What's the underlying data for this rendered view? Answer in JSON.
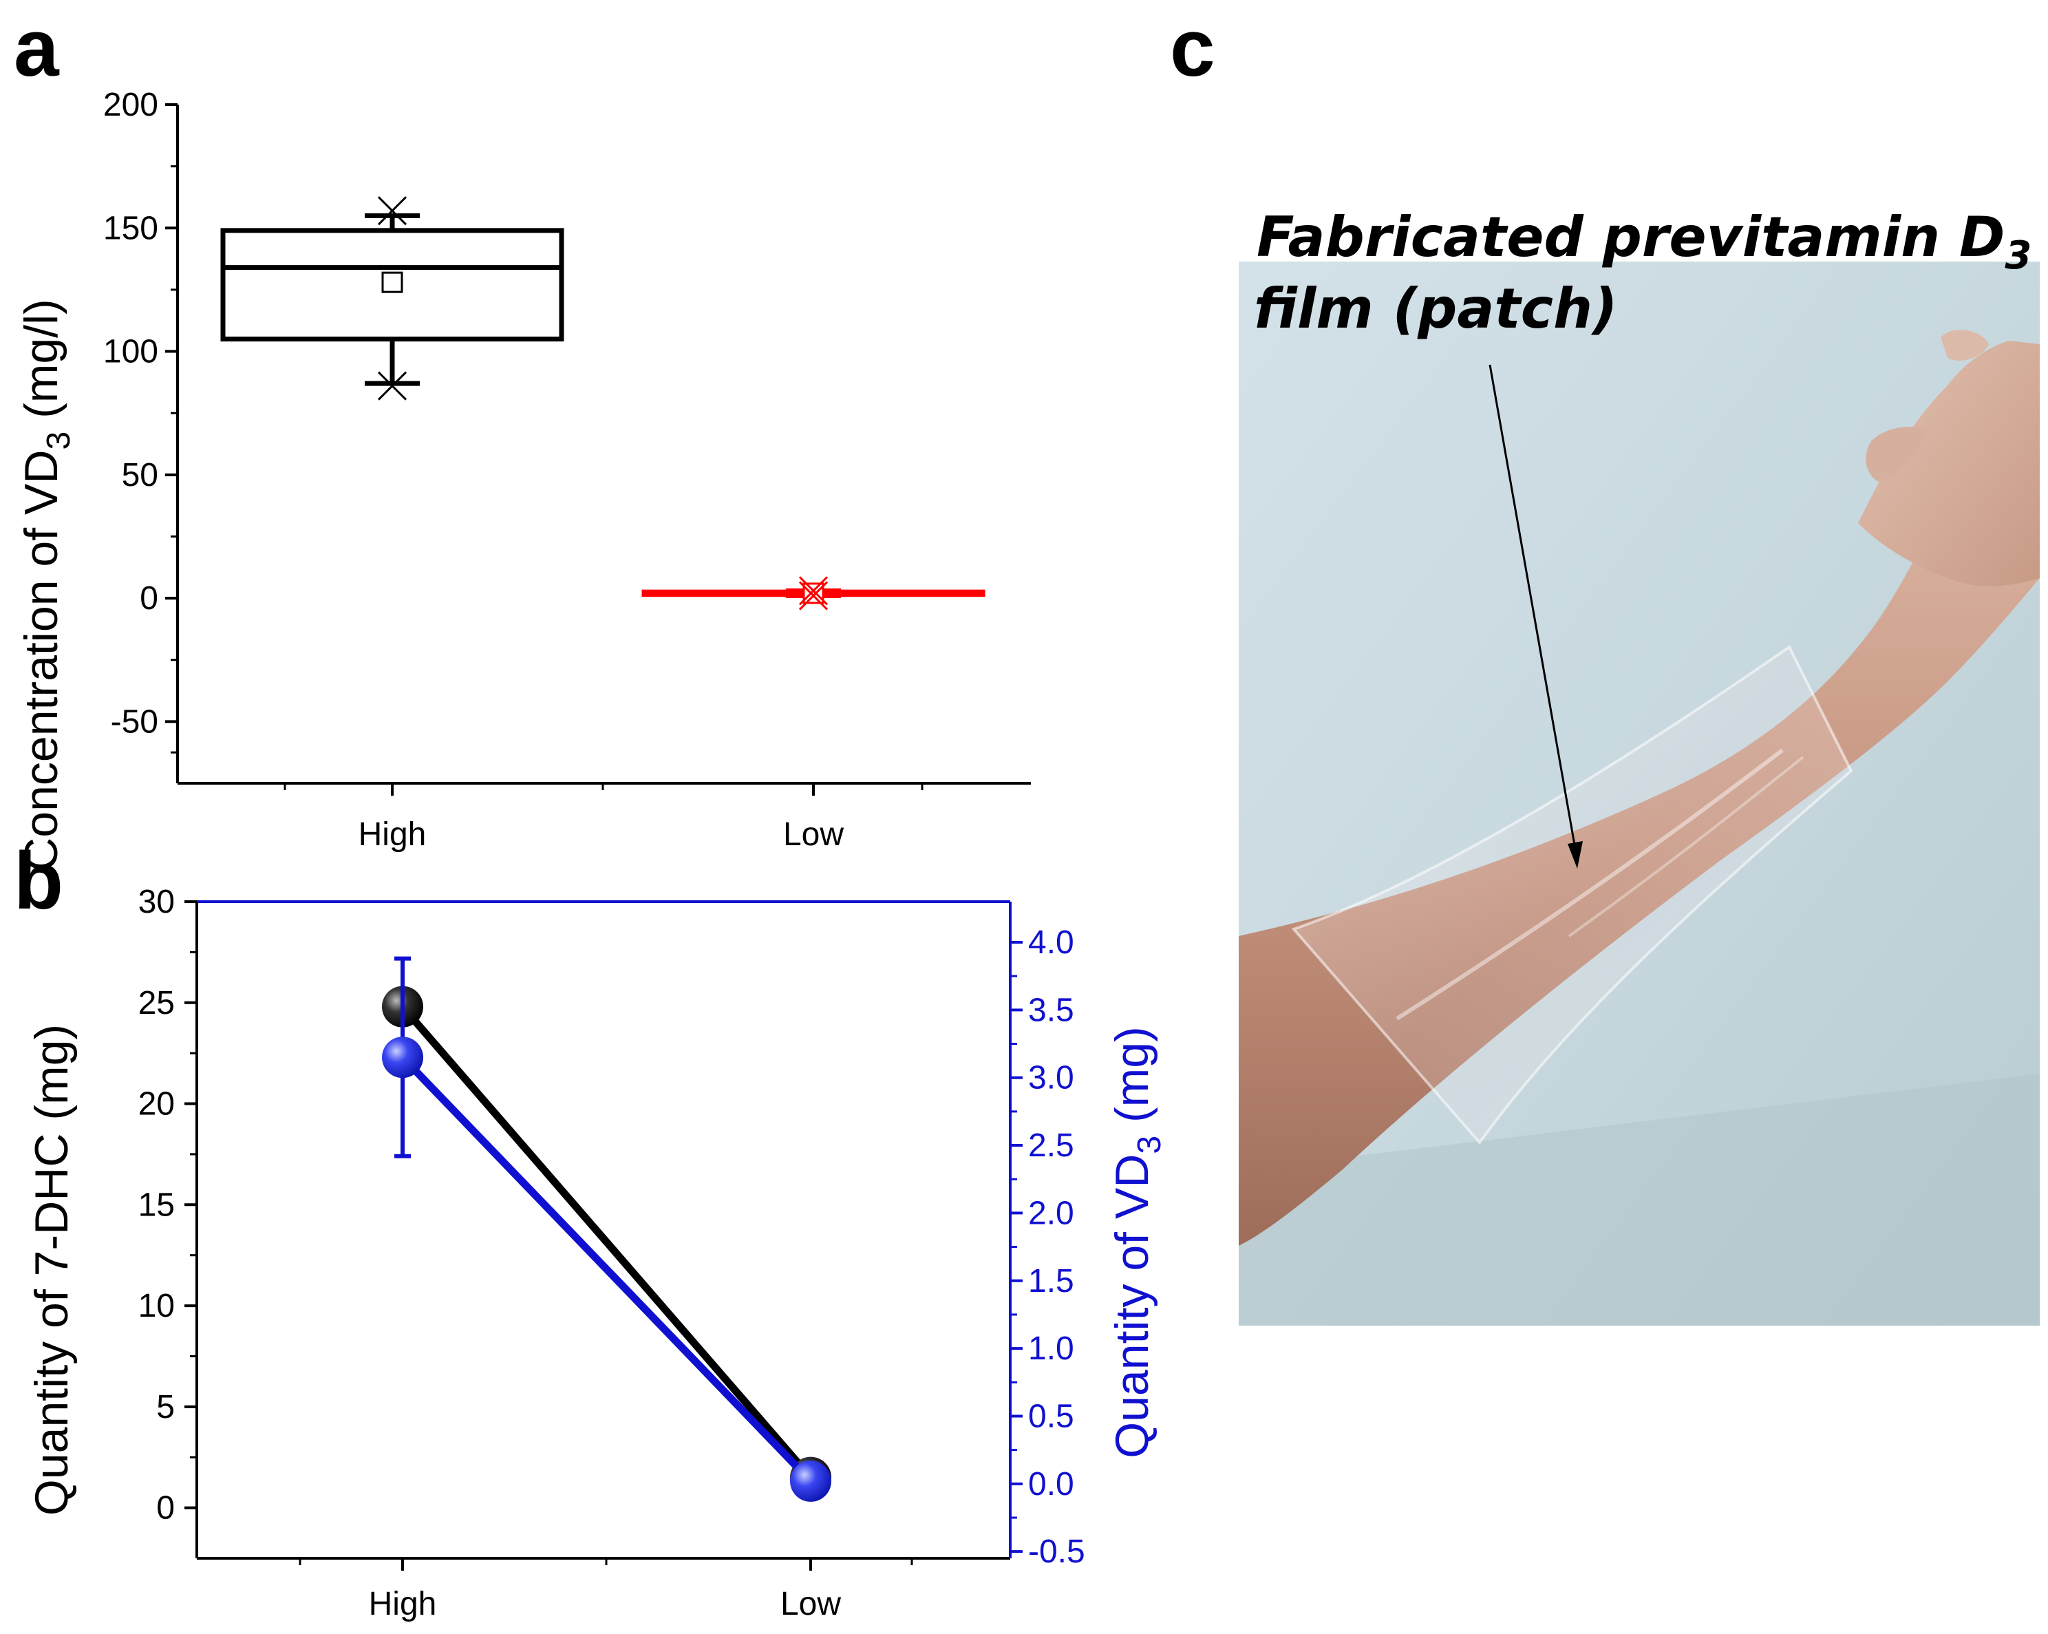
{
  "panels": {
    "a": "a",
    "b": "b",
    "c": "c"
  },
  "chart_data": [
    {
      "panel": "a",
      "type": "box",
      "categories": [
        "High",
        "Low"
      ],
      "ylabel_main": "Concentration of VD",
      "ylabel_sub": "3",
      "ylabel_unit": " (mg/l)",
      "ylim": [
        -75,
        200
      ],
      "yticks": [
        -50,
        0,
        50,
        100,
        150,
        200
      ],
      "ytick_labels": [
        "-50",
        "0",
        "50",
        "100",
        "150",
        "200"
      ],
      "boxes": [
        {
          "category": "High",
          "q1": 105,
          "median": 134,
          "q3": 149,
          "whisker_low": 87,
          "whisker_high": 155,
          "mean": 128,
          "min": 86,
          "max": 157,
          "color": "#000000"
        },
        {
          "category": "Low",
          "q1": 1.5,
          "median": 2,
          "q3": 2.5,
          "whisker_low": 1,
          "whisker_high": 3,
          "mean": 2,
          "min": 1,
          "max": 3,
          "color": "#ff0000"
        }
      ]
    },
    {
      "panel": "b",
      "type": "line",
      "categories": [
        "High",
        "Low"
      ],
      "ylabel_left": "Quantity of 7-DHC (mg)",
      "ylabel_right_main": "Quantity of VD",
      "ylabel_right_sub": "3",
      "ylabel_right_unit": " (mg)",
      "ylim_left": [
        -2.5,
        30
      ],
      "yticks_left": [
        0,
        5,
        10,
        15,
        20,
        25,
        30
      ],
      "ytick_labels_left": [
        "0",
        "5",
        "10",
        "15",
        "20",
        "25",
        "30"
      ],
      "ylim_right": [
        -0.55,
        4.3
      ],
      "yticks_right": [
        -0.5,
        0.0,
        0.5,
        1.0,
        1.5,
        2.0,
        2.5,
        3.0,
        3.5,
        4.0
      ],
      "ytick_labels_right": [
        "-0.5",
        "0.0",
        "0.5",
        "1.0",
        "1.5",
        "2.0",
        "2.5",
        "3.0",
        "3.5",
        "4.0"
      ],
      "series": [
        {
          "axis": "left",
          "color": "#000000",
          "values": [
            24.8,
            1.5
          ],
          "errors": [
            0.3,
            0.7
          ]
        },
        {
          "axis": "right",
          "color": "#1010d0",
          "values": [
            3.15,
            0.02
          ],
          "errors": [
            0.73,
            0.05
          ]
        }
      ]
    }
  ],
  "photo": {
    "annotation_line1": "Fabricated previtamin D",
    "annotation_line1_sub": "3",
    "annotation_line2": "film (patch)"
  }
}
